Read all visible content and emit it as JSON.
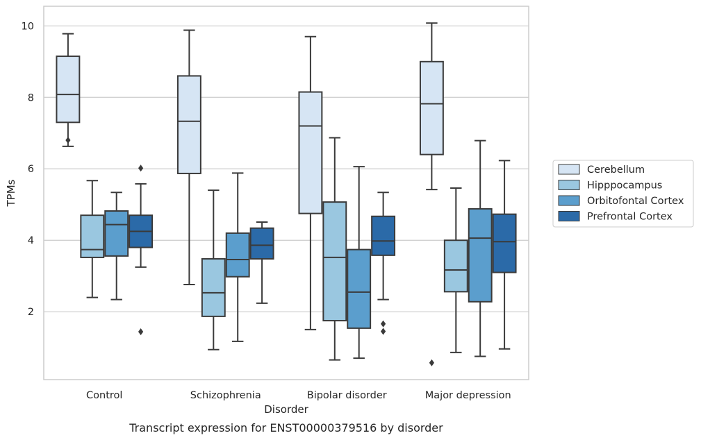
{
  "chart_data": {
    "type": "box",
    "caption": "Transcript expression for ENST00000379516 by disorder",
    "xlabel": "Disorder",
    "ylabel": "TPMs",
    "ylim": [
      0.1,
      10.55
    ],
    "yticks": [
      2,
      4,
      6,
      8,
      10
    ],
    "grid": "horizontal",
    "legend_position": "outside-right",
    "categories": [
      "Control",
      "Schizophrenia",
      "Bipolar disorder",
      "Major depression"
    ],
    "series": [
      {
        "name": "Cerebellum",
        "color": "#d6e5f4",
        "boxes": [
          {
            "whislo": 6.63,
            "q1": 7.3,
            "med": 8.08,
            "q3": 9.15,
            "whishi": 9.78,
            "fliers": [
              6.8
            ]
          },
          {
            "whislo": 2.76,
            "q1": 5.87,
            "med": 7.33,
            "q3": 8.6,
            "whishi": 9.88,
            "fliers": []
          },
          {
            "whislo": 1.5,
            "q1": 4.75,
            "med": 7.2,
            "q3": 8.15,
            "whishi": 9.7,
            "fliers": []
          },
          {
            "whislo": 5.42,
            "q1": 6.4,
            "med": 7.82,
            "q3": 9.0,
            "whishi": 10.08,
            "fliers": [
              0.57
            ]
          }
        ]
      },
      {
        "name": "Hipppocampus",
        "color": "#9ac7e0",
        "boxes": [
          {
            "whislo": 2.4,
            "q1": 3.52,
            "med": 3.74,
            "q3": 4.7,
            "whishi": 5.67,
            "fliers": []
          },
          {
            "whislo": 0.94,
            "q1": 1.87,
            "med": 2.53,
            "q3": 3.48,
            "whishi": 5.4,
            "fliers": []
          },
          {
            "whislo": 0.65,
            "q1": 1.75,
            "med": 3.52,
            "q3": 5.07,
            "whishi": 6.87,
            "fliers": []
          },
          {
            "whislo": 0.86,
            "q1": 2.56,
            "med": 3.17,
            "q3": 4.0,
            "whishi": 5.46,
            "fliers": []
          }
        ]
      },
      {
        "name": "Orbitofontal Cortex",
        "color": "#5b9ecd",
        "boxes": [
          {
            "whislo": 2.34,
            "q1": 3.56,
            "med": 4.44,
            "q3": 4.82,
            "whishi": 5.34,
            "fliers": []
          },
          {
            "whislo": 1.17,
            "q1": 2.98,
            "med": 3.46,
            "q3": 4.2,
            "whishi": 5.88,
            "fliers": []
          },
          {
            "whislo": 0.7,
            "q1": 1.54,
            "med": 2.55,
            "q3": 3.74,
            "whishi": 6.06,
            "fliers": []
          },
          {
            "whislo": 0.75,
            "q1": 2.28,
            "med": 4.06,
            "q3": 4.88,
            "whishi": 6.79,
            "fliers": []
          }
        ]
      },
      {
        "name": "Prefrontal Cortex",
        "color": "#2b6aa8",
        "boxes": [
          {
            "whislo": 3.25,
            "q1": 3.8,
            "med": 4.25,
            "q3": 4.7,
            "whishi": 5.58,
            "fliers": [
              6.02,
              1.44
            ]
          },
          {
            "whislo": 2.24,
            "q1": 3.48,
            "med": 3.86,
            "q3": 4.34,
            "whishi": 4.51,
            "fliers": []
          },
          {
            "whislo": 2.34,
            "q1": 3.58,
            "med": 3.98,
            "q3": 4.67,
            "whishi": 5.34,
            "fliers": [
              1.66,
              1.45
            ]
          },
          {
            "whislo": 0.96,
            "q1": 3.1,
            "med": 3.96,
            "q3": 4.73,
            "whishi": 6.23,
            "fliers": []
          }
        ]
      }
    ]
  }
}
